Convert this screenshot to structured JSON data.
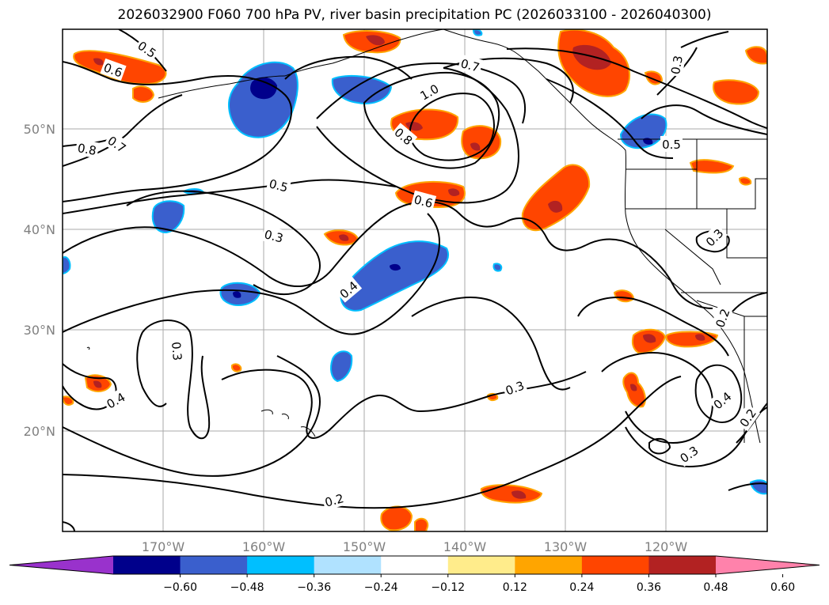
{
  "title": "2026032900 F060 700 hPa PV, river basin precipitation PC (2026033100 - 2026040300)",
  "lon_labels": [
    "170°W",
    "160°W",
    "150°W",
    "140°W",
    "130°W",
    "120°W"
  ],
  "lat_labels": [
    "50°N",
    "40°N",
    "30°N",
    "20°N"
  ],
  "contour_labels": [
    "0.5",
    "0.6",
    "0.7",
    "0.8",
    "0.7",
    "1.0",
    "0.8",
    "0.5",
    "0.6",
    "0.3",
    "0.3",
    "0.5",
    "0.3",
    "0.4",
    "0.3",
    "0.4",
    "0.3",
    "0.2",
    "0.3",
    "0.4",
    "0.2",
    "0.2"
  ],
  "colorbar": {
    "colors": [
      "#9932CC",
      "#00008B",
      "#3A5FCD",
      "#00BFFF",
      "#B0E2FF",
      "#FFFFFF",
      "#FFEC8B",
      "#FFA500",
      "#FF4500",
      "#B22222",
      "#FF82AB"
    ],
    "labels": [
      "−0.60",
      "−0.48",
      "−0.36",
      "−0.24",
      "−0.12",
      "0.12",
      "0.24",
      "0.36",
      "0.48",
      "0.60"
    ]
  },
  "colors": {
    "positive_fill": "#FF4500",
    "positive_core": "#B22222",
    "positive_edge": "#FFA500",
    "negative_fill": "#3A5FCD",
    "negative_core": "#00008B",
    "negative_edge": "#00BFFF",
    "contour": "#000000",
    "grid": "#AAAAAA"
  }
}
